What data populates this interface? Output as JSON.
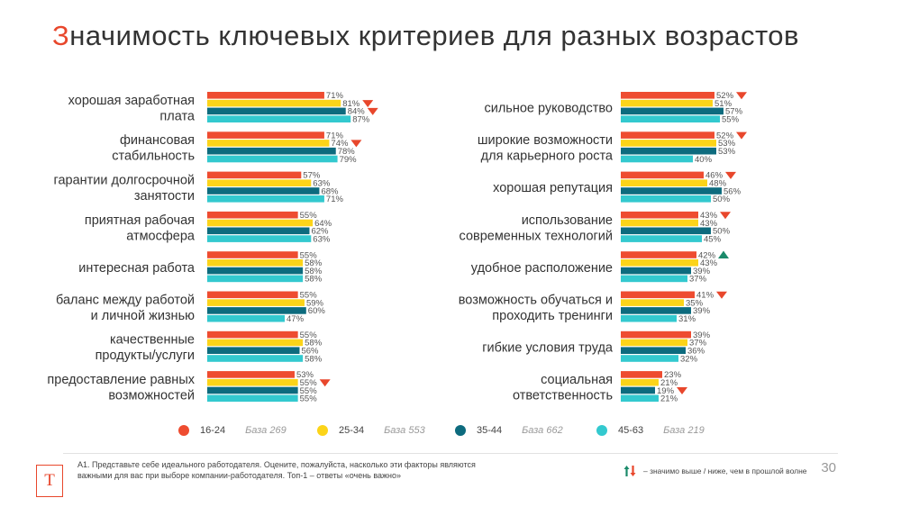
{
  "title": {
    "first_letter": "З",
    "rest": "начимость ключевых критериев для разных возрастов"
  },
  "legend": [
    {
      "name": "16-24",
      "base": "База 269",
      "color": "#ee4c30"
    },
    {
      "name": "25-34",
      "base": "База 553",
      "color": "#fcd419"
    },
    {
      "name": "35-44",
      "base": "База 662",
      "color": "#0d6b7e"
    },
    {
      "name": "45-63",
      "base": "База 219",
      "color": "#33c9cf"
    }
  ],
  "chart_data": [
    {
      "type": "bar",
      "orientation": "horizontal",
      "value_suffix": "%",
      "series_names": [
        "16-24",
        "25-34",
        "35-44",
        "45-63"
      ],
      "series_colors": [
        "#ee4c30",
        "#fcd419",
        "#0d6b7e",
        "#33c9cf"
      ],
      "categories": [
        {
          "label": [
            "хорошая заработная",
            "плата"
          ],
          "values": [
            71,
            81,
            84,
            87
          ],
          "markers": [
            null,
            "down",
            "down",
            null
          ]
        },
        {
          "label": [
            "финансовая",
            "стабильность"
          ],
          "values": [
            71,
            74,
            78,
            79
          ],
          "markers": [
            null,
            "down",
            null,
            null
          ]
        },
        {
          "label": [
            "гарантии долгосрочной",
            "занятости"
          ],
          "values": [
            57,
            63,
            68,
            71
          ],
          "markers": [
            null,
            null,
            null,
            null
          ]
        },
        {
          "label": [
            "приятная рабочая",
            "атмосфера"
          ],
          "values": [
            55,
            64,
            62,
            63
          ],
          "markers": [
            null,
            null,
            null,
            null
          ]
        },
        {
          "label": [
            "интересная работа"
          ],
          "values": [
            55,
            58,
            58,
            58
          ],
          "markers": [
            null,
            null,
            null,
            null
          ]
        },
        {
          "label": [
            "баланс между работой",
            "и личной жизнью"
          ],
          "values": [
            55,
            59,
            60,
            47
          ],
          "markers": [
            null,
            null,
            null,
            null
          ]
        },
        {
          "label": [
            "качественные",
            "продукты/услуги"
          ],
          "values": [
            55,
            58,
            56,
            58
          ],
          "markers": [
            null,
            null,
            null,
            null
          ]
        },
        {
          "label": [
            "предоставление равных",
            "возможностей"
          ],
          "values": [
            53,
            55,
            55,
            55
          ],
          "markers": [
            null,
            "down",
            null,
            null
          ]
        }
      ]
    },
    {
      "type": "bar",
      "orientation": "horizontal",
      "value_suffix": "%",
      "series_names": [
        "16-24",
        "25-34",
        "35-44",
        "45-63"
      ],
      "series_colors": [
        "#ee4c30",
        "#fcd419",
        "#0d6b7e",
        "#33c9cf"
      ],
      "categories": [
        {
          "label": [
            "сильное руководство"
          ],
          "values": [
            52,
            51,
            57,
            55
          ],
          "markers": [
            "down",
            null,
            null,
            null
          ]
        },
        {
          "label": [
            "широкие возможности",
            "для карьерного роста"
          ],
          "values": [
            52,
            53,
            53,
            40
          ],
          "markers": [
            "down",
            null,
            null,
            null
          ]
        },
        {
          "label": [
            "хорошая репутация"
          ],
          "values": [
            46,
            48,
            56,
            50
          ],
          "markers": [
            "down",
            null,
            null,
            null
          ]
        },
        {
          "label": [
            "использование",
            "современных технологий"
          ],
          "values": [
            43,
            43,
            50,
            45
          ],
          "markers": [
            "down",
            null,
            null,
            null
          ]
        },
        {
          "label": [
            "удобное расположение"
          ],
          "values": [
            42,
            43,
            39,
            37
          ],
          "markers": [
            "up",
            null,
            null,
            null
          ]
        },
        {
          "label": [
            "возможность обучаться и",
            "проходить тренинги"
          ],
          "values": [
            41,
            35,
            39,
            31
          ],
          "markers": [
            "down",
            null,
            null,
            null
          ]
        },
        {
          "label": [
            "гибкие условия труда"
          ],
          "values": [
            39,
            37,
            36,
            32
          ],
          "markers": [
            null,
            null,
            null,
            null
          ]
        },
        {
          "label": [
            "социальная",
            "ответственность"
          ],
          "values": [
            23,
            21,
            19,
            21
          ],
          "markers": [
            null,
            null,
            "down",
            null
          ]
        }
      ]
    }
  ],
  "colors": {
    "accent": "#e8472c",
    "down_marker": "#e8472c",
    "up_marker": "#1a8a6a"
  },
  "footnote": "А1. Представьте себе идеального работодателя. Оцените, пожалуйста, насколько эти факторы являются важными для вас при выборе компании-работодателя. Топ-1 – ответы «очень важно»",
  "significance_note": "– значимо выше / ниже, чем в прошлой волне",
  "page_number": "30",
  "logo_letter": "Т"
}
